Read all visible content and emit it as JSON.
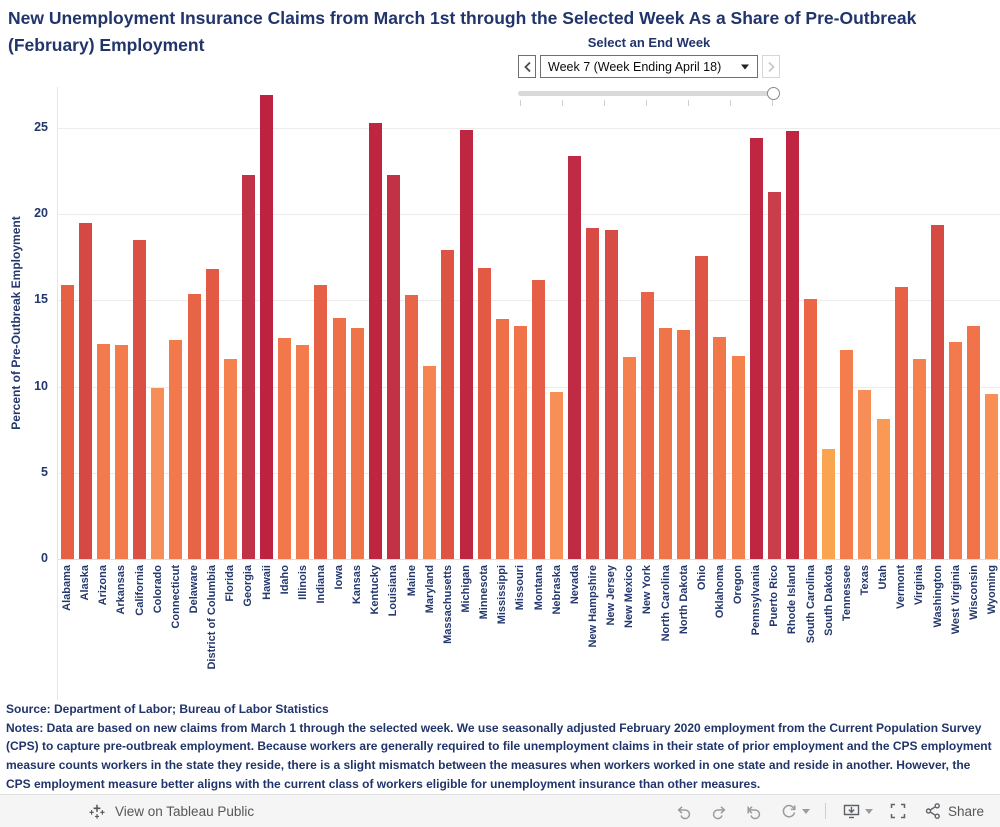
{
  "title": "New Unemployment Insurance Claims from March 1st through the Selected Week As a Share of Pre-Outbreak (February) Employment",
  "controls": {
    "label": "Select an End Week",
    "selected_week": "Week 7 (Week Ending April 18)",
    "slider_ticks": 7,
    "slider_position": "end",
    "prev_enabled": true,
    "next_enabled": false
  },
  "chart_data": {
    "type": "bar",
    "title": "New Unemployment Insurance Claims from March 1st through the Selected Week As a Share of Pre-Outbreak (February) Employment",
    "xlabel": "",
    "ylabel": "Percent of Pre-Outbreak Employment",
    "ylim": [
      0,
      27.3
    ],
    "yticks": [
      0,
      5,
      10,
      15,
      20,
      25
    ],
    "grid": true,
    "legend_position": "none",
    "categories": [
      "Alabama",
      "Alaska",
      "Arizona",
      "Arkansas",
      "California",
      "Colorado",
      "Connecticut",
      "Delaware",
      "District of Columbia",
      "Florida",
      "Georgia",
      "Hawaii",
      "Idaho",
      "Illinois",
      "Indiana",
      "Iowa",
      "Kansas",
      "Kentucky",
      "Louisiana",
      "Maine",
      "Maryland",
      "Massachusetts",
      "Michigan",
      "Minnesota",
      "Mississippi",
      "Missouri",
      "Montana",
      "Nebraska",
      "Nevada",
      "New Hampshire",
      "New Jersey",
      "New Mexico",
      "New York",
      "North Carolina",
      "North Dakota",
      "Ohio",
      "Oklahoma",
      "Oregon",
      "Pennsylvania",
      "Puerto Rico",
      "Rhode Island",
      "South Carolina",
      "South Dakota",
      "Tennessee",
      "Texas",
      "Utah",
      "Vermont",
      "Virginia",
      "Washington",
      "West Virginia",
      "Wisconsin",
      "Wyoming"
    ],
    "values": [
      15.9,
      19.5,
      12.5,
      12.4,
      18.5,
      9.9,
      12.7,
      15.4,
      16.8,
      11.6,
      22.3,
      26.9,
      12.8,
      12.4,
      15.9,
      14.0,
      13.4,
      25.3,
      22.3,
      15.3,
      11.2,
      17.9,
      24.9,
      16.9,
      13.9,
      13.5,
      16.2,
      9.7,
      23.4,
      19.2,
      19.1,
      11.7,
      15.5,
      13.4,
      13.3,
      17.6,
      12.9,
      11.8,
      24.4,
      21.3,
      24.8,
      15.1,
      6.4,
      12.1,
      9.8,
      8.1,
      15.8,
      11.6,
      19.4,
      12.6,
      13.5,
      9.6
    ],
    "color_scale": {
      "low_color": "#FAA64F",
      "high_color": "#BD2340",
      "stops": [
        [
          6,
          "#FAA64F"
        ],
        [
          10,
          "#F88D57"
        ],
        [
          12,
          "#F47E4D"
        ],
        [
          14,
          "#EE6F48"
        ],
        [
          16,
          "#E65F46"
        ],
        [
          18,
          "#DD5345"
        ],
        [
          19.5,
          "#D54944"
        ],
        [
          21.3,
          "#C93E4A"
        ],
        [
          22.3,
          "#C23247"
        ],
        [
          24,
          "#BE2742"
        ],
        [
          27,
          "#BD2340"
        ]
      ]
    }
  },
  "footer": {
    "source": "Source: Department of Labor; Bureau of Labor Statistics",
    "notes": "Notes: Data are based on new claims from March 1 through the selected week. We use seasonally adjusted February 2020 employment from the Current Population Survey (CPS) to capture pre-outbreak employment. Because workers are generally required to file unemployment claims in their state of prior employment and the CPS employment measure counts workers in the state they reside, there is a slight mismatch between the measures when workers worked in one state and reside in another. However, the CPS employment measure better aligns with the current class of workers eligible for unemployment insurance than other measures."
  },
  "toolbar": {
    "view_label": "View on Tableau Public",
    "share_label": "Share",
    "icons": [
      "tableau-logo-icon",
      "undo-icon",
      "redo-icon",
      "revert-icon",
      "refresh-icon",
      "download-icon",
      "fullscreen-icon",
      "share-icon"
    ]
  },
  "colors": {
    "text_navy": "#21356B",
    "axis_navy": "#24386E",
    "gridline": "#ececec",
    "toolbar_bg": "#f5f5f5",
    "toolbar_icon_disabled": "#9b9b9b",
    "toolbar_icon_active": "#5f6368"
  }
}
